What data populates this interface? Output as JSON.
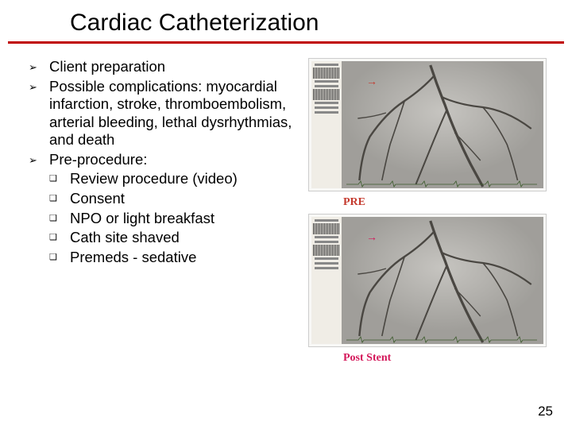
{
  "title": "Cardiac Catheterization",
  "colors": {
    "rule": "#c00000",
    "text": "#000000",
    "bg": "#ffffff",
    "angio_bg": "#bcbab5",
    "vessel": "#4a4742",
    "barcode_bg": "#f0ede6",
    "annot1_color": "#c43a2e",
    "annot2_color": "#d4185a",
    "ecg_color": "#3a5a2a"
  },
  "typography": {
    "title_fontsize": 30,
    "body_fontsize": 18.5,
    "pagenum_fontsize": 17,
    "annot_fontsize": 14
  },
  "bullets": [
    {
      "marker": "➢",
      "text": "Client preparation"
    },
    {
      "marker": "➢",
      "text": "Possible complications: myocardial infarction, stroke, thromboembolism, arterial bleeding, lethal dysrhythmias, and death"
    },
    {
      "marker": "➢",
      "text": "Pre-procedure:",
      "sub": [
        {
          "marker": "❑",
          "text": "Review procedure (video)"
        },
        {
          "marker": "❑",
          "text": "Consent"
        },
        {
          "marker": "❑",
          "text": "NPO or light breakfast"
        },
        {
          "marker": "❑",
          "text": "Cath site shaved"
        },
        {
          "marker": "❑",
          "text": "Premeds - sedative"
        }
      ]
    }
  ],
  "images": [
    {
      "arrow": "→",
      "label": "PRE"
    },
    {
      "arrow": "→",
      "label": "Post Stent"
    }
  ],
  "page_number": "25"
}
